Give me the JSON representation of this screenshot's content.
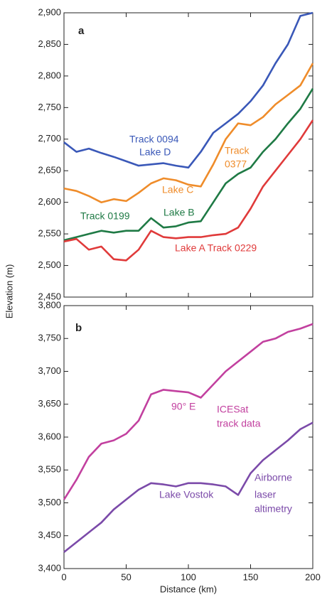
{
  "chart_data": [
    {
      "type": "line",
      "panel": "a",
      "ylabel": "Elevation (m)",
      "x": [
        0,
        10,
        20,
        30,
        40,
        50,
        60,
        70,
        80,
        90,
        100,
        110,
        120,
        130,
        140,
        150,
        160,
        170,
        180,
        190,
        200
      ],
      "series": [
        {
          "color": "#3a58b8",
          "values": [
            2695,
            2680,
            2685,
            2678,
            2672,
            2665,
            2658,
            2660,
            2662,
            2658,
            2655,
            2680,
            2710,
            2725,
            2740,
            2760,
            2785,
            2820,
            2850,
            2895,
            2900
          ]
        },
        {
          "color": "#ef8c2a",
          "values": [
            2622,
            2618,
            2610,
            2600,
            2605,
            2602,
            2615,
            2630,
            2638,
            2635,
            2628,
            2625,
            2660,
            2700,
            2725,
            2722,
            2735,
            2755,
            2770,
            2785,
            2820
          ]
        },
        {
          "color": "#1f7a45",
          "values": [
            2540,
            2545,
            2550,
            2555,
            2552,
            2555,
            2555,
            2575,
            2560,
            2562,
            2568,
            2570,
            2600,
            2630,
            2645,
            2655,
            2680,
            2700,
            2725,
            2748,
            2780
          ]
        },
        {
          "color": "#e03a3a",
          "values": [
            2538,
            2542,
            2525,
            2530,
            2510,
            2508,
            2525,
            2555,
            2545,
            2543,
            2545,
            2545,
            2548,
            2550,
            2560,
            2590,
            2625,
            2650,
            2675,
            2700,
            2730
          ]
        }
      ],
      "xlim": [
        0,
        200
      ],
      "xticks": [
        0,
        50,
        100,
        150,
        200
      ],
      "ylim": [
        2450,
        2900
      ],
      "yticks": [
        {
          "value": 2450,
          "label": "2,450"
        },
        {
          "value": 2500,
          "label": "2,500"
        },
        {
          "value": 2550,
          "label": "2,550"
        },
        {
          "value": 2600,
          "label": "2,600"
        },
        {
          "value": 2650,
          "label": "2,650"
        },
        {
          "value": 2700,
          "label": "2,700"
        },
        {
          "value": 2750,
          "label": "2,750"
        },
        {
          "value": 2800,
          "label": "2,800"
        },
        {
          "value": 2850,
          "label": "2,850"
        },
        {
          "value": 2900,
          "label": "2,900"
        }
      ],
      "annotations": [
        {
          "text": "Track 0094",
          "color": "#3a58b8"
        },
        {
          "text": "Lake D",
          "color": "#3a58b8"
        },
        {
          "text": "Track",
          "color": "#ef8c2a"
        },
        {
          "text": "0377",
          "color": "#ef8c2a"
        },
        {
          "text": "Lake C",
          "color": "#ef8c2a"
        },
        {
          "text": "Track 0199",
          "color": "#1f7a45"
        },
        {
          "text": "Lake B",
          "color": "#1f7a45"
        },
        {
          "text": "Lake A Track 0229",
          "color": "#e03a3a"
        }
      ]
    },
    {
      "type": "line",
      "panel": "b",
      "xlabel": "Distance (km)",
      "x": [
        0,
        10,
        20,
        30,
        40,
        50,
        60,
        70,
        80,
        90,
        100,
        110,
        120,
        130,
        140,
        150,
        160,
        170,
        180,
        190,
        200
      ],
      "series": [
        {
          "color": "#c2409f",
          "values": [
            3505,
            3535,
            3570,
            3590,
            3595,
            3605,
            3625,
            3665,
            3672,
            3670,
            3668,
            3660,
            3680,
            3700,
            3715,
            3730,
            3745,
            3750,
            3760,
            3765,
            3772
          ]
        },
        {
          "color": "#7b4aa9",
          "values": [
            3425,
            3440,
            3455,
            3470,
            3490,
            3505,
            3520,
            3530,
            3528,
            3525,
            3530,
            3530,
            3528,
            3525,
            3512,
            3545,
            3565,
            3580,
            3595,
            3612,
            3622
          ]
        }
      ],
      "xlim": [
        0,
        200
      ],
      "xticks": [
        0,
        50,
        100,
        150,
        200
      ],
      "ylim": [
        3400,
        3800
      ],
      "yticks": [
        {
          "value": 3400,
          "label": "3,400"
        },
        {
          "value": 3450,
          "label": "3,450"
        },
        {
          "value": 3500,
          "label": "3,500"
        },
        {
          "value": 3550,
          "label": "3,550"
        },
        {
          "value": 3600,
          "label": "3,600"
        },
        {
          "value": 3650,
          "label": "3,650"
        },
        {
          "value": 3700,
          "label": "3,700"
        },
        {
          "value": 3750,
          "label": "3,750"
        },
        {
          "value": 3800,
          "label": "3,800"
        }
      ],
      "annotations": [
        {
          "text": "90° E",
          "color": "#c2409f"
        },
        {
          "text": "ICESat",
          "color": "#c2409f"
        },
        {
          "text": "track data",
          "color": "#c2409f"
        },
        {
          "text": "Lake Vostok",
          "color": "#7b4aa9"
        },
        {
          "text": "Airborne",
          "color": "#7b4aa9"
        },
        {
          "text": "laser",
          "color": "#7b4aa9"
        },
        {
          "text": "altimetry",
          "color": "#7b4aa9"
        }
      ]
    }
  ]
}
